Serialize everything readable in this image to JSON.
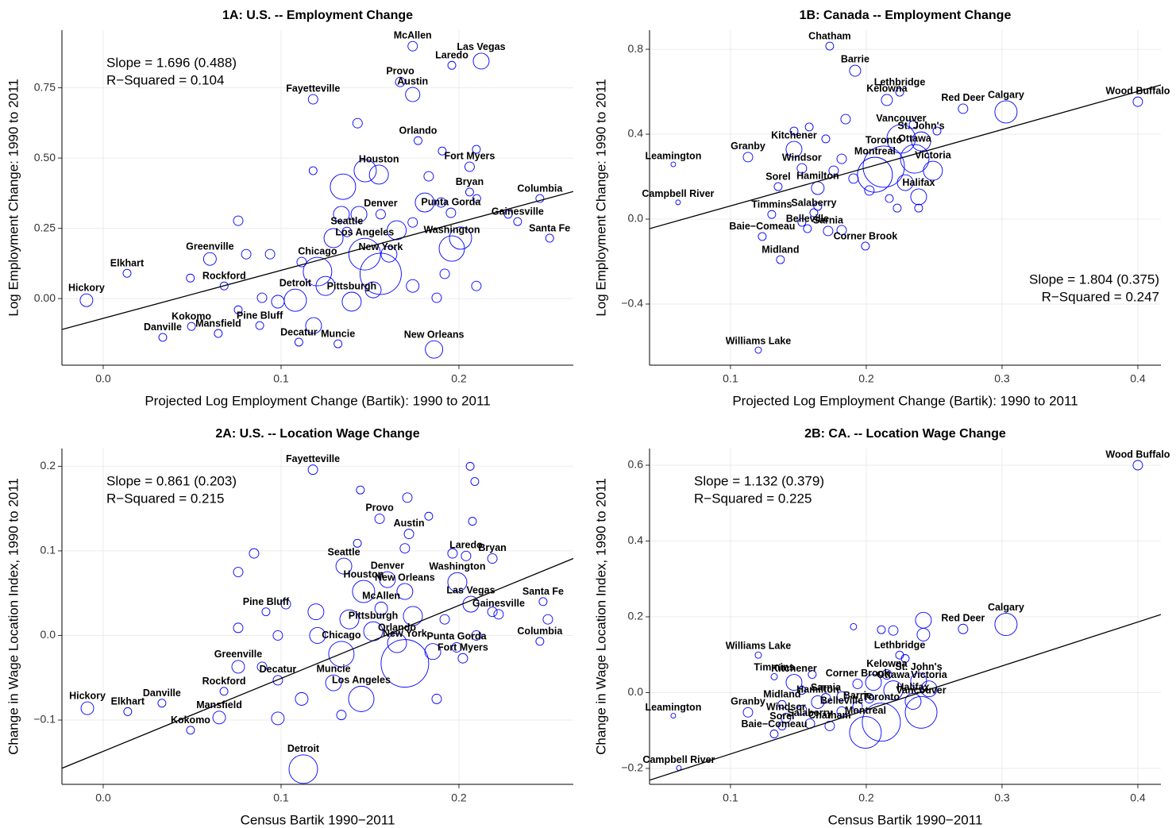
{
  "chart_data": [
    {
      "type": "scatter",
      "title": "1A: U.S. -- Employment Change",
      "x_label": "Projected Log Employment Change (Bartik): 1990 to 2011",
      "y_label": "Log Employment Change: 1990 to 2011",
      "annotations": [
        "Slope = 1.696 (0.488)",
        "R−Squared = 0.104"
      ],
      "annotation_corner": "upper left",
      "xlim": [
        -0.0232,
        0.2643
      ],
      "ylim": [
        -0.237,
        0.955
      ],
      "xticks": [
        {
          "value": 0,
          "label": "0.0"
        },
        0.1,
        0.2
      ],
      "yticks": [
        {
          "value": 0,
          "label": "0.00"
        },
        0.25,
        {
          "value": 0.5,
          "label": "0.50"
        },
        0.75
      ],
      "grid": true,
      "color": "#0000ff",
      "fit": {
        "x": [
          -0.0232,
          0.2643
        ],
        "y": [
          -0.11,
          0.381
        ]
      },
      "points": {
        "x": [
          0.174,
          0.2125,
          0.196,
          0.167,
          0.174,
          0.118,
          0.177,
          0.155,
          0.206,
          0.206,
          0.2455,
          0.156,
          0.1955,
          0.233,
          0.137,
          0.251,
          0.147,
          0.196,
          0.1205,
          0.0134,
          0.06,
          0.068,
          0.156,
          -0.0094,
          0.108,
          0.1397,
          0.0496,
          0.088,
          0.0647,
          0.0335,
          0.132,
          0.11,
          0.186,
          0.143,
          0.1906,
          0.2098,
          0.1348,
          0.1473,
          0.183,
          0.2009,
          0.165,
          0.174,
          0.0759,
          0.0804,
          0.0938,
          0.1116,
          0.1295,
          0.1339,
          0.1607,
          0.174,
          0.1875,
          0.2098,
          0.0982,
          0.0893,
          0.0759,
          0.125,
          0.1518,
          0.192,
          0.049,
          0.1183,
          0.1808,
          0.19,
          0.21,
          0.2277,
          0.118,
          0.1438
        ],
        "y": [
          0.898,
          0.845,
          0.83,
          0.771,
          0.726,
          0.709,
          0.562,
          0.441,
          0.469,
          0.379,
          0.356,
          0.3,
          0.305,
          0.274,
          0.237,
          0.215,
          0.158,
          0.178,
          0.096,
          0.09,
          0.141,
          0.045,
          0.088,
          -0.006,
          -0.006,
          -0.011,
          -0.099,
          -0.096,
          -0.124,
          -0.138,
          -0.161,
          -0.155,
          -0.181,
          0.624,
          0.525,
          0.531,
          0.398,
          0.455,
          0.435,
          0.215,
          0.243,
          0.271,
          0.277,
          0.158,
          0.158,
          0.13,
          0.215,
          0.3,
          0.158,
          0.045,
          0.003,
          0.045,
          -0.011,
          0.003,
          -0.04,
          0.045,
          0.031,
          0.088,
          0.073,
          -0.096,
          0.342,
          0.342,
          0.356,
          0.3,
          0.455,
          0.3
        ],
        "size": [
          6,
          10,
          5,
          6,
          9,
          6,
          5,
          12,
          6,
          5,
          5,
          6,
          6,
          5,
          6,
          5,
          20,
          16,
          18,
          5,
          8,
          5,
          26,
          8,
          14,
          12,
          5,
          5,
          5,
          5,
          5,
          5,
          11,
          6,
          5,
          5,
          16,
          14,
          6,
          14,
          12,
          6,
          6,
          6,
          6,
          6,
          12,
          10,
          10,
          8,
          6,
          6,
          8,
          6,
          5,
          12,
          10,
          6,
          5,
          10,
          12,
          6,
          5,
          5,
          5,
          10
        ],
        "labels": [
          "McAllen",
          "Las Vegas",
          "Laredo",
          "Provo",
          "Austin",
          "Fayetteville",
          "Orlando",
          "Houston",
          "Fort Myers",
          "Bryan",
          "Columbia",
          "Denver",
          "Punta Gorda",
          "Gainesville",
          "Seattle",
          "Santa Fe",
          "Los Angeles",
          "Washington",
          "Chicago",
          "Elkhart",
          "Greenville",
          "Rockford",
          "New York",
          "Hickory",
          "Detroit",
          "Pittsburgh",
          "Kokomo",
          "Pine Bluff",
          "Mansfield",
          "Danville",
          "Muncie",
          "Decatur",
          "New Orleans",
          null,
          null,
          null,
          null,
          null,
          null,
          null,
          null,
          null,
          null,
          null,
          null,
          null,
          null,
          null,
          null,
          null,
          null,
          null,
          null,
          null,
          null,
          null,
          null,
          null,
          null,
          null,
          null,
          null,
          null,
          null,
          null,
          null
        ]
      }
    },
    {
      "type": "scatter",
      "title": "1B: Canada -- Employment Change",
      "x_label": "Projected Log Employment Change (Bartik): 1990 to 2011",
      "y_label": "Log Employment Change: 1990 to 2011",
      "annotations": [
        "Slope = 1.804 (0.375)",
        "R−Squared = 0.247"
      ],
      "annotation_corner": "lower right",
      "xlim": [
        0.0404,
        0.417
      ],
      "ylim": [
        -0.688,
        0.89
      ],
      "xticks": [
        0.1,
        0.2,
        0.3,
        0.4
      ],
      "yticks": [
        {
          "value": -0.4,
          "label": "−0.4"
        },
        {
          "value": 0,
          "label": "0.0"
        },
        0.4,
        0.8
      ],
      "grid": true,
      "color": "#0000ff",
      "fit": {
        "x": [
          0.0404,
          0.417
        ],
        "y": [
          -0.045,
          0.632
        ]
      },
      "points": {
        "x": [
          0.1731,
          0.1918,
          0.2246,
          0.4,
          0.2713,
          0.2152,
          0.3029,
          0.2257,
          0.1468,
          0.2129,
          0.2404,
          0.1129,
          0.1526,
          0.2064,
          0.2357,
          0.2491,
          0.0579,
          0.1351,
          0.1643,
          0.2386,
          0.0614,
          0.1614,
          0.1304,
          0.1719,
          0.1234,
          0.1567,
          0.1994,
          0.1368,
          0.1205,
          0.1468,
          0.158,
          0.1848,
          0.1702,
          0.2345,
          0.2521,
          0.1819,
          0.1906,
          0.217,
          0.2228,
          0.2386,
          0.176,
          0.1643,
          0.1526,
          0.1819,
          0.2287,
          0.2023
        ],
        "y": [
          0.815,
          0.699,
          0.598,
          0.553,
          0.52,
          0.561,
          0.505,
          0.378,
          0.329,
          0.247,
          0.366,
          0.292,
          0.239,
          0.209,
          0.284,
          0.228,
          0.258,
          0.153,
          0.146,
          0.105,
          0.079,
          0.03,
          0.022,
          -0.056,
          -0.082,
          -0.045,
          -0.127,
          -0.191,
          -0.617,
          0.415,
          0.434,
          0.471,
          0.378,
          0.445,
          0.415,
          0.284,
          0.191,
          0.097,
          0.052,
          0.052,
          0.228,
          0.06,
          -0.015,
          -0.052,
          0.172,
          0.135
        ],
        "size": [
          5,
          7,
          5,
          6,
          6,
          7,
          14,
          18,
          10,
          26,
          12,
          6,
          6,
          22,
          18,
          12,
          3,
          5,
          8,
          10,
          3,
          5,
          5,
          6,
          5,
          5,
          5,
          5,
          4,
          5,
          5,
          6,
          5,
          5,
          5,
          6,
          6,
          5,
          5,
          5,
          6,
          5,
          5,
          6,
          10,
          6
        ],
        "labels": [
          "Chatham",
          "Barrie",
          "Lethbridge",
          "Wood Buffalo",
          "Red Deer",
          "Kelowna",
          "Calgary",
          "Vancouver",
          "Kitchener",
          "Toronto",
          "St. John's",
          "Granby",
          "Windsor",
          "Montreal",
          "Ottawa",
          "Victoria",
          "Leamington",
          "Sorel",
          "Hamilton",
          "Halifax",
          "Campbell River",
          "Salaberry",
          "Timmins",
          "Sarnia",
          "Baie−Comeau",
          "Belleville",
          "Corner Brook",
          "Midland",
          "Williams Lake",
          null,
          null,
          null,
          null,
          null,
          null,
          null,
          null,
          null,
          null,
          null,
          null,
          null,
          null,
          null,
          null,
          null
        ]
      }
    },
    {
      "type": "scatter",
      "title": "2A: U.S. -- Location Wage Change",
      "x_label": "Census Bartik 1990−2011",
      "y_label": "Change in Wage Location Index, 1990 to 2011",
      "annotations": [
        "Slope = 0.861 (0.203)",
        "R−Squared = 0.215"
      ],
      "annotation_corner": "upper left",
      "xlim": [
        -0.0232,
        0.2643
      ],
      "ylim": [
        -0.176,
        0.221
      ],
      "xticks": [
        {
          "value": 0,
          "label": "0.0"
        },
        0.1,
        0.2
      ],
      "yticks": [
        {
          "value": -0.1,
          "label": "−0.1"
        },
        {
          "value": 0,
          "label": "0.0"
        },
        0.1,
        0.2
      ],
      "grid": true,
      "color": "#0000ff",
      "fit": {
        "x": [
          -0.0232,
          0.2643
        ],
        "y": [
          -0.157,
          0.091
        ]
      },
      "points": {
        "x": [
          0.1179,
          0.1554,
          0.1719,
          0.1353,
          0.204,
          0.2188,
          0.1598,
          0.1991,
          0.2473,
          0.1464,
          0.1696,
          0.2067,
          0.1563,
          0.0915,
          0.2223,
          0.1518,
          0.2455,
          0.1652,
          0.1987,
          0.1339,
          0.0759,
          0.2022,
          0.1696,
          0.0982,
          0.1295,
          0.0679,
          0.033,
          -0.0089,
          0.0138,
          0.1451,
          0.0652,
          0.0491,
          0.1125,
          0.1446,
          0.171,
          0.183,
          0.2063,
          0.2089,
          0.2076,
          0.1429,
          0.1696,
          0.1964,
          0.0848,
          0.0759,
          0.1027,
          0.1196,
          0.1384,
          0.1741,
          0.192,
          0.2188,
          0.25,
          0.0759,
          0.0982,
          0.1205,
          0.1853,
          0.2098,
          0.1116,
          0.0982,
          0.1339,
          0.1875,
          0.0893
        ],
        "y": [
          0.196,
          0.138,
          0.12,
          0.082,
          0.094,
          0.091,
          0.066,
          0.063,
          0.04,
          0.052,
          0.052,
          0.037,
          0.032,
          0.028,
          0.025,
          0.005,
          -0.007,
          -0.009,
          -0.014,
          -0.022,
          -0.037,
          -0.027,
          -0.033,
          -0.053,
          -0.056,
          -0.066,
          -0.08,
          -0.086,
          -0.09,
          -0.075,
          -0.097,
          -0.112,
          -0.158,
          0.172,
          0.163,
          0.141,
          0.2,
          0.182,
          0.135,
          0.109,
          0.103,
          0.097,
          0.097,
          0.075,
          0.037,
          0.028,
          0.019,
          0.023,
          0.019,
          0.028,
          0.019,
          0.009,
          0,
          0,
          -0.019,
          0,
          -0.075,
          -0.098,
          -0.094,
          -0.075,
          -0.037
        ],
        "size": [
          6,
          6,
          6,
          10,
          6,
          6,
          10,
          12,
          5,
          14,
          10,
          10,
          8,
          5,
          6,
          12,
          5,
          12,
          6,
          16,
          8,
          6,
          30,
          6,
          10,
          5,
          5,
          8,
          5,
          16,
          8,
          5,
          18,
          5,
          6,
          5,
          5,
          5,
          5,
          5,
          6,
          6,
          6,
          6,
          6,
          10,
          12,
          12,
          6,
          6,
          6,
          6,
          6,
          10,
          10,
          6,
          8,
          8,
          6,
          6,
          6
        ],
        "labels": [
          "Fayetteville",
          "Provo",
          "Austin",
          "Seattle",
          "Laredo",
          "Bryan",
          "Denver",
          "Washington",
          "Santa Fe",
          "Houston",
          "New Orleans",
          "Las Vegas",
          "McAllen",
          "Pine Bluff",
          "Gainesville",
          "Pittsburgh",
          "Columbia",
          "Orlando",
          "Punta Gorda",
          "Chicago",
          "Greenville",
          "Fort Myers",
          "New York",
          "Decatur",
          "Muncie",
          "Rockford",
          "Danville",
          "Hickory",
          "Elkhart",
          "Los Angeles",
          "Mansfield",
          "Kokomo",
          "Detroit",
          null,
          null,
          null,
          null,
          null,
          null,
          null,
          null,
          null,
          null,
          null,
          null,
          null,
          null,
          null,
          null,
          null,
          null,
          null,
          null,
          null,
          null,
          null,
          null,
          null,
          null,
          null,
          null
        ]
      }
    },
    {
      "type": "scatter",
      "title": "2B: CA. -- Location Wage Change",
      "x_label": "Census Bartik 1990−2011",
      "y_label": "Change in Wage Location Index, 1990 to 2011",
      "annotations": [
        "Slope = 1.132 (0.379)",
        "R−Squared = 0.225"
      ],
      "annotation_corner": "upper left",
      "xlim": [
        0.0404,
        0.417
      ],
      "ylim": [
        -0.242,
        0.644
      ],
      "xticks": [
        0.1,
        0.2,
        0.3,
        0.4
      ],
      "yticks": [
        {
          "value": -0.2,
          "label": "−0.2"
        },
        {
          "value": 0,
          "label": "0.0"
        },
        0.2,
        0.4,
        0.6
      ],
      "grid": true,
      "color": "#0000ff",
      "fit": {
        "x": [
          0.0404,
          0.417
        ],
        "y": [
          -0.231,
          0.206
        ]
      },
      "points": {
        "x": [
          0.4,
          0.3029,
          0.2713,
          0.2246,
          0.1205,
          0.1322,
          0.2152,
          0.2386,
          0.1468,
          0.1936,
          0.2199,
          0.2462,
          0.138,
          0.1643,
          0.1702,
          0.1936,
          0.2345,
          0.1129,
          0.1409,
          0.1819,
          0.2404,
          0.2111,
          0.1994,
          0.1585,
          0.1731,
          0.138,
          0.1322,
          0.0579,
          0.062,
          0.1906,
          0.2421,
          0.2421,
          0.2111,
          0.2199,
          0.2287,
          0.1602,
          0.1526,
          0.1819,
          0.2023,
          0.2053,
          0.1526
        ],
        "y": [
          0.6,
          0.18,
          0.168,
          0.099,
          0.099,
          0.042,
          0.048,
          0.031,
          0.027,
          0.023,
          0.006,
          0.01,
          -0.031,
          -0.025,
          -0.015,
          -0.036,
          -0.023,
          -0.052,
          -0.067,
          -0.05,
          -0.052,
          -0.078,
          -0.105,
          -0.082,
          -0.088,
          -0.088,
          -0.109,
          -0.061,
          -0.199,
          0.174,
          0.191,
          0.153,
          0.166,
          0.164,
          0.09,
          0.048,
          0.006,
          -0.01,
          -0.015,
          0.027,
          -0.046
        ],
        "size": [
          6,
          14,
          6,
          5,
          4,
          4,
          6,
          10,
          10,
          6,
          12,
          10,
          5,
          8,
          6,
          6,
          10,
          6,
          6,
          6,
          20,
          24,
          20,
          6,
          6,
          5,
          5,
          3,
          3,
          4,
          10,
          8,
          5,
          6,
          5,
          5,
          5,
          6,
          6,
          10,
          6
        ],
        "labels": [
          "Wood Buffalo",
          "Calgary",
          "Red Deer",
          "Lethbridge",
          "Williams Lake",
          "Timmins",
          "Kelowna",
          "St. John's",
          "Kitchener",
          "Corner Brook",
          "Ottawa",
          "Victoria",
          "Midland",
          "Hamilton",
          "Sarnia",
          "Barrie",
          "Halifax",
          "Granby",
          "Windsor",
          "Belleville",
          "Vancouver",
          "Toronto",
          "Montreal",
          "Salaberry",
          "Chatham",
          "Sorel",
          "Baie−Comeau",
          "Leamington",
          "Campbell River",
          null,
          null,
          null,
          null,
          null,
          null,
          null,
          null,
          null,
          null,
          null,
          null
        ]
      }
    }
  ]
}
